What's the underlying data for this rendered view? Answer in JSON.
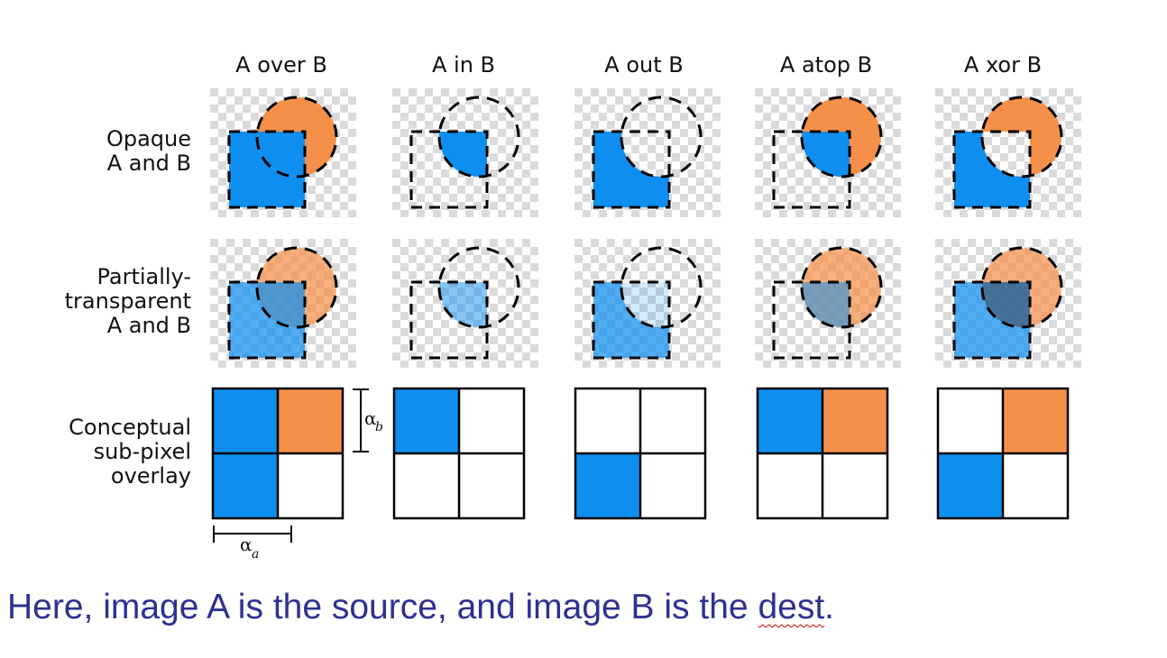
{
  "columns": [
    {
      "title": "A over B"
    },
    {
      "title": "A in B"
    },
    {
      "title": "A out B"
    },
    {
      "title": "A atop B"
    },
    {
      "title": "A xor B"
    }
  ],
  "rows": [
    {
      "label_lines": [
        "Opaque",
        "A and B"
      ]
    },
    {
      "label_lines": [
        "Partially-",
        "transparent",
        "A and B"
      ]
    },
    {
      "label_lines": [
        "Conceptual",
        "sub-pixel",
        "overlay"
      ]
    }
  ],
  "alpha_b_label": "α",
  "alpha_b_sub": "b",
  "alpha_a_label": "α",
  "alpha_a_sub": "a",
  "caption": {
    "text_main": "Here, image A is the source, and image B is the ",
    "text_flagged": "dest",
    "text_end": "."
  },
  "colors": {
    "source_blue": "#0e8ff0",
    "dest_orange": "#f5904a",
    "checker_light": "#ffffff",
    "checker_dark": "#dadada",
    "caption": "#2e3191"
  }
}
